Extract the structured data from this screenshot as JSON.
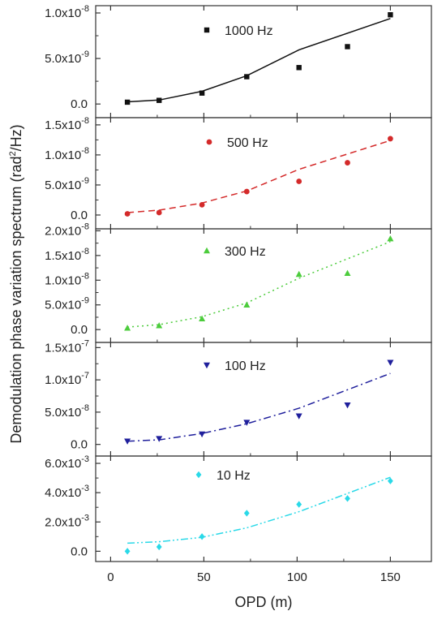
{
  "chart_data": {
    "type": "scatter",
    "xlabel": "OPD (m)",
    "ylabel_parts": [
      "Demodulation phase variation spectrum (rad",
      "2",
      "/Hz)"
    ],
    "xlim": [
      -8,
      172
    ],
    "xticks": [
      0,
      50,
      100,
      150
    ],
    "x": [
      9,
      26,
      49,
      73,
      101,
      127,
      150
    ],
    "panels": [
      {
        "name": "1000 Hz",
        "color": "#111111",
        "marker": "square",
        "line_style": "solid",
        "ylim": [
          -1.5e-09,
          1.08e-08
        ],
        "yticks": [
          0,
          5e-09,
          1e-08
        ],
        "ytick_labels": [
          "0.0",
          "5.0x10",
          "1.0x10"
        ],
        "ytick_exponents": [
          "",
          "-9",
          "-8"
        ],
        "values": [
          2e-10,
          4e-10,
          1.2e-09,
          3e-09,
          4e-09,
          6.3e-09,
          9.8e-09
        ],
        "fit": [
          2.36e-10,
          4.34e-10,
          1.4e-09,
          3.11e-09,
          5.95e-09,
          9.39e-09
        ]
      },
      {
        "name": "500 Hz",
        "color": "#d42a2a",
        "marker": "circle",
        "line_style": "dashed",
        "ylim": [
          -2.3e-09,
          1.62e-08
        ],
        "yticks": [
          0,
          5e-09,
          1e-08,
          1.5e-08
        ],
        "ytick_labels": [
          "0.0",
          "5.0x10",
          "1.0x10",
          "1.5x10"
        ],
        "ytick_exponents": [
          "",
          "-9",
          "-8",
          "-8"
        ],
        "values": [
          2e-10,
          4e-10,
          1.7e-09,
          3.9e-09,
          5.6e-09,
          8.7e-09,
          1.27e-08
        ],
        "fit": [
          4e-10,
          8e-10,
          2e-09,
          4e-09,
          7.6e-09,
          1.24e-08
        ]
      },
      {
        "name": "300 Hz",
        "color": "#4ccc3c",
        "marker": "triangle-up",
        "line_style": "dotted",
        "ylim": [
          -2.6e-09,
          2.04e-08
        ],
        "yticks": [
          0,
          5e-09,
          1e-08,
          1.5e-08,
          2e-08
        ],
        "ytick_labels": [
          "0.0",
          "5.0x10",
          "1.0x10",
          "1.5x10",
          "2.0x10"
        ],
        "ytick_exponents": [
          "",
          "-9",
          "-8",
          "-8",
          "-8"
        ],
        "values": [
          3e-10,
          8e-10,
          2.2e-09,
          5e-09,
          1.12e-08,
          1.14e-08,
          1.84e-08
        ],
        "fit": [
          5e-10,
          1e-09,
          2.6e-09,
          5.4e-09,
          1.04e-08,
          1.78e-08
        ]
      },
      {
        "name": "100 Hz",
        "color": "#1f1f9c",
        "marker": "triangle-down",
        "line_style": "dashdot",
        "ylim": [
          -1.8e-08,
          1.58e-07
        ],
        "yticks": [
          0,
          5e-08,
          1e-07,
          1.5e-07
        ],
        "ytick_labels": [
          "0.0",
          "5.0x10",
          "1.0x10",
          "1.5x10"
        ],
        "ytick_exponents": [
          "",
          "-8",
          "-7",
          "-7"
        ],
        "values": [
          5e-09,
          9e-09,
          1.6e-08,
          3.4e-08,
          4.4e-08,
          6.1e-08,
          1.27e-07
        ],
        "fit": [
          5e-09,
          7e-09,
          1.7e-08,
          3.2e-08,
          5.6e-08,
          1.1e-07
        ]
      },
      {
        "name": "10 Hz",
        "color": "#2ad9e8",
        "marker": "diamond",
        "line_style": "dashdotdot",
        "ylim": [
          -0.0007,
          0.0065
        ],
        "yticks": [
          0,
          0.002,
          0.004,
          0.006
        ],
        "ytick_labels": [
          "0.0",
          "2.0x10",
          "4.0x10",
          "6.0x10"
        ],
        "ytick_exponents": [
          "",
          "-3",
          "-3",
          "-3"
        ],
        "values": [
          0.0,
          0.0003,
          0.001,
          0.0026,
          0.0032,
          0.0036,
          0.0048
        ],
        "fit": [
          0.00055,
          0.00065,
          0.00095,
          0.0016,
          0.0027,
          0.00505
        ]
      }
    ]
  }
}
